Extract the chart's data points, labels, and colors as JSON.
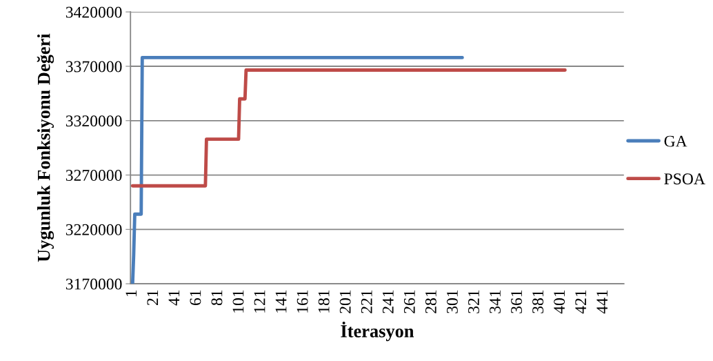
{
  "chart_data": {
    "type": "line",
    "xlabel": "İterasyon",
    "ylabel": "Uygunluk Fonksiyonu Değeri",
    "xlim": [
      -1,
      460
    ],
    "xticks": [
      1,
      21,
      41,
      61,
      81,
      101,
      121,
      141,
      161,
      181,
      201,
      221,
      241,
      261,
      281,
      301,
      321,
      341,
      361,
      381,
      401,
      421,
      441
    ],
    "ylim": [
      3170000,
      3420000
    ],
    "yticks": [
      3170000,
      3220000,
      3270000,
      3320000,
      3370000,
      3420000
    ],
    "grid": "y",
    "legend": "right",
    "line_style": "solid",
    "marker": "none",
    "series": [
      {
        "name": "GA",
        "color": "#4a7ebb",
        "x": [
          1,
          2,
          3,
          9,
          10,
          309
        ],
        "values": [
          3170000,
          3197000,
          3234000,
          3234000,
          3378000,
          3378000
        ]
      },
      {
        "name": "PSOA",
        "color": "#be4b48",
        "x": [
          1,
          69,
          70,
          100,
          101,
          106,
          107,
          405
        ],
        "values": [
          3260000,
          3260000,
          3303000,
          3303000,
          3340000,
          3340000,
          3366500,
          3366500
        ]
      }
    ]
  }
}
